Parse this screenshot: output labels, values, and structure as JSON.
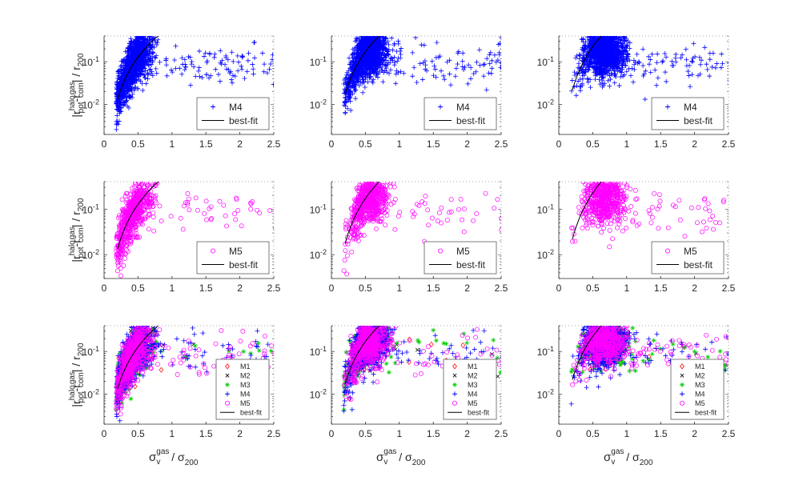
{
  "figure": {
    "layout": "3x3 grid of log-scale scatter panels",
    "ylabel_parts": {
      "main": "|r",
      "sub1": "pot",
      "sup1": "halo",
      "dash": "-r",
      "sub2": "com",
      "sup2": "gas",
      "tail": "| / r",
      "sub3": "200"
    },
    "xlabel_parts": {
      "main": "σ",
      "sub1": "v",
      "sup1": "gas",
      "tail": " / σ",
      "sub2": "200"
    }
  },
  "chart_data": [
    {
      "type": "scatter",
      "row": 0,
      "col": 0,
      "xlim": [
        0,
        2.5
      ],
      "ylim": [
        0.002,
        0.4
      ],
      "yscale": "log",
      "xticks": [
        "0",
        "0.5",
        "1",
        "1.5",
        "2",
        "2.5"
      ],
      "yticks": [
        "10^-2",
        "10^-1"
      ],
      "series": [
        {
          "name": "M4",
          "marker": "+",
          "color": "#0000ff",
          "x_center": 0.42,
          "x_spread": 0.14,
          "count": 1500
        }
      ],
      "fit": {
        "name": "best-fit",
        "a": 0.2,
        "b": 2.45
      },
      "legend": [
        {
          "label": "M4",
          "marker": "+",
          "color": "#0000ff"
        },
        {
          "label": "best-fit",
          "marker": "line",
          "color": "#000000"
        }
      ],
      "has_ylabel": true,
      "has_xlabel": false,
      "legend_style": "large"
    },
    {
      "type": "scatter",
      "row": 0,
      "col": 1,
      "xlim": [
        0,
        2.5
      ],
      "ylim": [
        0.002,
        0.4
      ],
      "yscale": "log",
      "xticks": [
        "0",
        "0.5",
        "1",
        "1.5",
        "2",
        "2.5"
      ],
      "yticks": [
        "10^-2",
        "10^-1"
      ],
      "series": [
        {
          "name": "M4",
          "marker": "+",
          "color": "#0000ff",
          "x_center": 0.53,
          "x_spread": 0.15,
          "count": 1500
        }
      ],
      "fit": {
        "name": "best-fit",
        "a": 0.27,
        "b": 2.5
      },
      "legend": [
        {
          "label": "M4",
          "marker": "+",
          "color": "#0000ff"
        },
        {
          "label": "best-fit",
          "marker": "line",
          "color": "#000000"
        }
      ],
      "has_ylabel": false,
      "has_xlabel": false,
      "legend_style": "large"
    },
    {
      "type": "scatter",
      "row": 0,
      "col": 2,
      "xlim": [
        0,
        2.5
      ],
      "ylim": [
        0.002,
        0.4
      ],
      "yscale": "log",
      "xticks": [
        "0",
        "0.5",
        "1",
        "1.5",
        "2",
        "2.5"
      ],
      "yticks": [
        "10^-2",
        "10^-1"
      ],
      "series": [
        {
          "name": "M4",
          "marker": "+",
          "color": "#0000ff",
          "x_center": 0.66,
          "x_spread": 0.16,
          "count": 1500
        }
      ],
      "fit": {
        "name": "best-fit",
        "a": 0.36,
        "b": 2.55
      },
      "legend": [
        {
          "label": "M4",
          "marker": "+",
          "color": "#0000ff"
        },
        {
          "label": "best-fit",
          "marker": "line",
          "color": "#000000"
        }
      ],
      "has_ylabel": false,
      "has_xlabel": false,
      "legend_style": "large"
    },
    {
      "type": "scatter",
      "row": 1,
      "col": 0,
      "xlim": [
        0,
        2.5
      ],
      "ylim": [
        0.003,
        0.4
      ],
      "yscale": "log",
      "xticks": [
        "0",
        "0.5",
        "1",
        "1.5",
        "2",
        "2.5"
      ],
      "yticks": [
        "10^-2",
        "10^-1"
      ],
      "series": [
        {
          "name": "M5",
          "marker": "o",
          "color": "#ff00ff",
          "x_center": 0.42,
          "x_spread": 0.14,
          "count": 650
        }
      ],
      "fit": {
        "name": "best-fit",
        "a": 0.2,
        "b": 2.45
      },
      "legend": [
        {
          "label": "M5",
          "marker": "o",
          "color": "#ff00ff"
        },
        {
          "label": "best-fit",
          "marker": "line",
          "color": "#000000"
        }
      ],
      "has_ylabel": true,
      "has_xlabel": false,
      "legend_style": "large"
    },
    {
      "type": "scatter",
      "row": 1,
      "col": 1,
      "xlim": [
        0,
        2.5
      ],
      "ylim": [
        0.003,
        0.4
      ],
      "yscale": "log",
      "xticks": [
        "0",
        "0.5",
        "1",
        "1.5",
        "2",
        "2.5"
      ],
      "yticks": [
        "10^-2",
        "10^-1"
      ],
      "series": [
        {
          "name": "M5",
          "marker": "o",
          "color": "#ff00ff",
          "x_center": 0.53,
          "x_spread": 0.15,
          "count": 650
        }
      ],
      "fit": {
        "name": "best-fit",
        "a": 0.27,
        "b": 2.5
      },
      "legend": [
        {
          "label": "M5",
          "marker": "o",
          "color": "#ff00ff"
        },
        {
          "label": "best-fit",
          "marker": "line",
          "color": "#000000"
        }
      ],
      "has_ylabel": false,
      "has_xlabel": false,
      "legend_style": "large"
    },
    {
      "type": "scatter",
      "row": 1,
      "col": 2,
      "xlim": [
        0,
        2.5
      ],
      "ylim": [
        0.003,
        0.4
      ],
      "yscale": "log",
      "xticks": [
        "0",
        "0.5",
        "1",
        "1.5",
        "2",
        "2.5"
      ],
      "yticks": [
        "10^-2",
        "10^-1"
      ],
      "series": [
        {
          "name": "M5",
          "marker": "o",
          "color": "#ff00ff",
          "x_center": 0.66,
          "x_spread": 0.16,
          "count": 650
        }
      ],
      "fit": {
        "name": "best-fit",
        "a": 0.36,
        "b": 2.55
      },
      "legend": [
        {
          "label": "M5",
          "marker": "o",
          "color": "#ff00ff"
        },
        {
          "label": "best-fit",
          "marker": "line",
          "color": "#000000"
        }
      ],
      "has_ylabel": false,
      "has_xlabel": false,
      "legend_style": "large"
    },
    {
      "type": "scatter",
      "row": 2,
      "col": 0,
      "xlim": [
        0,
        2.5
      ],
      "ylim": [
        0.002,
        0.4
      ],
      "yscale": "log",
      "xticks": [
        "0",
        "0.5",
        "1",
        "1.5",
        "2",
        "2.5"
      ],
      "yticks": [
        "10^-2",
        "10^-1"
      ],
      "series": [
        {
          "name": "M1",
          "marker": "diamond",
          "color": "#ff0000",
          "x_center": 0.42,
          "x_spread": 0.14,
          "count": 40
        },
        {
          "name": "M2",
          "marker": "x",
          "color": "#000000",
          "x_center": 0.42,
          "x_spread": 0.14,
          "count": 60
        },
        {
          "name": "M3",
          "marker": "*",
          "color": "#00cc00",
          "x_center": 0.42,
          "x_spread": 0.16,
          "count": 250
        },
        {
          "name": "M4",
          "marker": "+",
          "color": "#0000ff",
          "x_center": 0.42,
          "x_spread": 0.14,
          "count": 900
        },
        {
          "name": "M5",
          "marker": "o",
          "color": "#ff00ff",
          "x_center": 0.42,
          "x_spread": 0.14,
          "count": 650
        }
      ],
      "fit": {
        "name": "best-fit",
        "a": 0.2,
        "b": 2.45
      },
      "legend": [
        {
          "label": "M1",
          "marker": "diamond",
          "color": "#ff0000"
        },
        {
          "label": "M2",
          "marker": "x",
          "color": "#000000"
        },
        {
          "label": "M3",
          "marker": "*",
          "color": "#00cc00"
        },
        {
          "label": "M4",
          "marker": "+",
          "color": "#0000ff"
        },
        {
          "label": "M5",
          "marker": "o",
          "color": "#ff00ff"
        },
        {
          "label": "best-fit",
          "marker": "line",
          "color": "#000000"
        }
      ],
      "has_ylabel": true,
      "has_xlabel": true,
      "legend_style": "small"
    },
    {
      "type": "scatter",
      "row": 2,
      "col": 1,
      "xlim": [
        0,
        2.5
      ],
      "ylim": [
        0.002,
        0.4
      ],
      "yscale": "log",
      "xticks": [
        "0",
        "0.5",
        "1",
        "1.5",
        "2",
        "2.5"
      ],
      "yticks": [
        "10^-2",
        "10^-1"
      ],
      "series": [
        {
          "name": "M1",
          "marker": "diamond",
          "color": "#ff0000",
          "x_center": 0.53,
          "x_spread": 0.15,
          "count": 40
        },
        {
          "name": "M2",
          "marker": "x",
          "color": "#000000",
          "x_center": 0.53,
          "x_spread": 0.15,
          "count": 60
        },
        {
          "name": "M3",
          "marker": "*",
          "color": "#00cc00",
          "x_center": 0.53,
          "x_spread": 0.17,
          "count": 250
        },
        {
          "name": "M4",
          "marker": "+",
          "color": "#0000ff",
          "x_center": 0.53,
          "x_spread": 0.15,
          "count": 900
        },
        {
          "name": "M5",
          "marker": "o",
          "color": "#ff00ff",
          "x_center": 0.53,
          "x_spread": 0.15,
          "count": 650
        }
      ],
      "fit": {
        "name": "best-fit",
        "a": 0.27,
        "b": 2.5
      },
      "legend": [
        {
          "label": "M1",
          "marker": "diamond",
          "color": "#ff0000"
        },
        {
          "label": "M2",
          "marker": "x",
          "color": "#000000"
        },
        {
          "label": "M3",
          "marker": "*",
          "color": "#00cc00"
        },
        {
          "label": "M4",
          "marker": "+",
          "color": "#0000ff"
        },
        {
          "label": "M5",
          "marker": "o",
          "color": "#ff00ff"
        },
        {
          "label": "best-fit",
          "marker": "line",
          "color": "#000000"
        }
      ],
      "has_ylabel": false,
      "has_xlabel": true,
      "legend_style": "small"
    },
    {
      "type": "scatter",
      "row": 2,
      "col": 2,
      "xlim": [
        0,
        2.5
      ],
      "ylim": [
        0.002,
        0.4
      ],
      "yscale": "log",
      "xticks": [
        "0",
        "0.5",
        "1",
        "1.5",
        "2",
        "2.5"
      ],
      "yticks": [
        "10^-2",
        "10^-1"
      ],
      "series": [
        {
          "name": "M1",
          "marker": "diamond",
          "color": "#ff0000",
          "x_center": 0.66,
          "x_spread": 0.16,
          "count": 40
        },
        {
          "name": "M2",
          "marker": "x",
          "color": "#000000",
          "x_center": 0.66,
          "x_spread": 0.16,
          "count": 60
        },
        {
          "name": "M3",
          "marker": "*",
          "color": "#00cc00",
          "x_center": 0.66,
          "x_spread": 0.18,
          "count": 250
        },
        {
          "name": "M4",
          "marker": "+",
          "color": "#0000ff",
          "x_center": 0.66,
          "x_spread": 0.16,
          "count": 900
        },
        {
          "name": "M5",
          "marker": "o",
          "color": "#ff00ff",
          "x_center": 0.66,
          "x_spread": 0.16,
          "count": 650
        }
      ],
      "fit": {
        "name": "best-fit",
        "a": 0.36,
        "b": 2.55
      },
      "legend": [
        {
          "label": "M1",
          "marker": "diamond",
          "color": "#ff0000"
        },
        {
          "label": "M2",
          "marker": "x",
          "color": "#000000"
        },
        {
          "label": "M3",
          "marker": "*",
          "color": "#00cc00"
        },
        {
          "label": "M4",
          "marker": "+",
          "color": "#0000ff"
        },
        {
          "label": "M5",
          "marker": "o",
          "color": "#ff00ff"
        },
        {
          "label": "best-fit",
          "marker": "line",
          "color": "#000000"
        }
      ],
      "has_ylabel": false,
      "has_xlabel": true,
      "legend_style": "small"
    }
  ]
}
